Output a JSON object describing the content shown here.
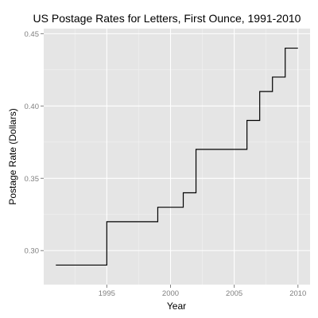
{
  "chart_data": {
    "type": "line",
    "line_shape": "step",
    "title": "US Postage Rates for Letters, First Ounce, 1991-2010",
    "xlabel": "Year",
    "ylabel": "Postage Rate (Dollars)",
    "xlim": [
      1990.05,
      2010.95
    ],
    "ylim": [
      0.2765,
      0.4535
    ],
    "x_ticks": [
      1995,
      2000,
      2005,
      2010
    ],
    "y_ticks": [
      0.3,
      0.35,
      0.4,
      0.45
    ],
    "x_tick_labels": [
      "1995",
      "2000",
      "2005",
      "2010"
    ],
    "y_tick_labels": [
      "0.30",
      "0.35",
      "0.40",
      "0.45"
    ],
    "grid": true,
    "legend": "none",
    "series": [
      {
        "x": [
          1991,
          1995,
          1999,
          2001,
          2002,
          2006,
          2007,
          2008,
          2009,
          2010
        ],
        "values": [
          0.29,
          0.32,
          0.33,
          0.34,
          0.37,
          0.39,
          0.41,
          0.42,
          0.44,
          0.44
        ]
      }
    ]
  },
  "colors": {
    "panel_background": "#e5e5e5",
    "grid_major": "#ffffff",
    "grid_minor": "#f2f2f2",
    "line": "#000000",
    "tick_label": "#7f7f7f"
  }
}
